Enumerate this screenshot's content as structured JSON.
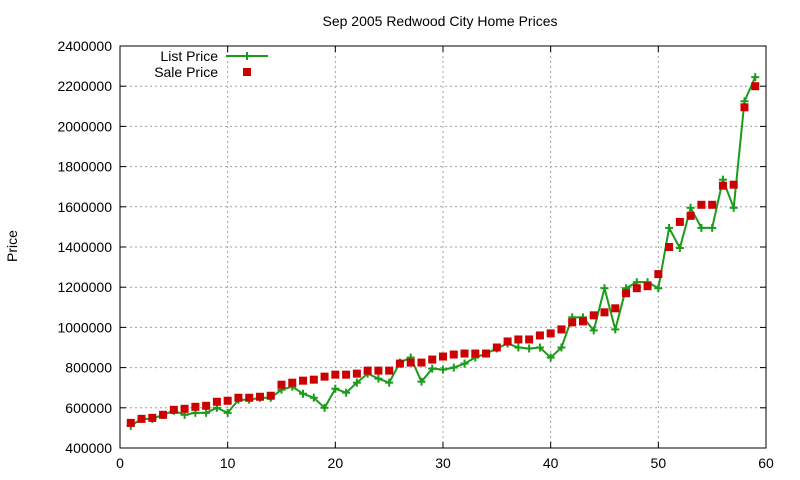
{
  "chart_data": {
    "type": "line",
    "title": "Sep 2005 Redwood City Home Prices",
    "xlabel": "",
    "ylabel": "Price",
    "xlim": [
      0,
      60
    ],
    "ylim": [
      400000,
      2400000
    ],
    "x_ticks": [
      0,
      10,
      20,
      30,
      40,
      50,
      60
    ],
    "y_ticks": [
      400000,
      600000,
      800000,
      1000000,
      1200000,
      1400000,
      1600000,
      1800000,
      2000000,
      2200000,
      2400000
    ],
    "grid": true,
    "legend_position": "top-left",
    "series": [
      {
        "name": "List Price",
        "style": "line-with-plus-markers",
        "color": "#1a9c1a",
        "x": [
          1,
          2,
          3,
          4,
          5,
          6,
          7,
          8,
          9,
          10,
          11,
          12,
          13,
          14,
          15,
          16,
          17,
          18,
          19,
          20,
          21,
          22,
          23,
          24,
          25,
          26,
          27,
          28,
          29,
          30,
          31,
          32,
          33,
          34,
          35,
          36,
          37,
          38,
          39,
          40,
          41,
          42,
          43,
          44,
          45,
          46,
          47,
          48,
          49,
          50,
          51,
          52,
          53,
          54,
          55,
          56,
          57,
          58,
          59
        ],
        "values": [
          510000,
          545000,
          545000,
          565000,
          585000,
          565000,
          575000,
          575000,
          600000,
          575000,
          640000,
          640000,
          650000,
          650000,
          690000,
          705000,
          670000,
          650000,
          600000,
          695000,
          675000,
          725000,
          770000,
          745000,
          725000,
          825000,
          850000,
          730000,
          795000,
          790000,
          800000,
          820000,
          850000,
          870000,
          895000,
          920000,
          900000,
          895000,
          900000,
          850000,
          900000,
          1050000,
          1050000,
          985000,
          1195000,
          990000,
          1195000,
          1225000,
          1225000,
          1195000,
          1495000,
          1395000,
          1595000,
          1495000,
          1495000,
          1735000,
          1595000,
          2125000,
          2245000
        ]
      },
      {
        "name": "Sale Price",
        "style": "square-markers",
        "color": "#cc0000",
        "x": [
          1,
          2,
          3,
          4,
          5,
          6,
          7,
          8,
          9,
          10,
          11,
          12,
          13,
          14,
          15,
          16,
          17,
          18,
          19,
          20,
          21,
          22,
          23,
          24,
          25,
          26,
          27,
          28,
          29,
          30,
          31,
          32,
          33,
          34,
          35,
          36,
          37,
          38,
          39,
          40,
          41,
          42,
          43,
          44,
          45,
          46,
          47,
          48,
          49,
          50,
          51,
          52,
          53,
          54,
          55,
          56,
          57,
          58,
          59
        ],
        "values": [
          525000,
          545000,
          550000,
          565000,
          590000,
          595000,
          605000,
          610000,
          630000,
          635000,
          650000,
          650000,
          655000,
          660000,
          715000,
          725000,
          735000,
          740000,
          755000,
          765000,
          765000,
          770000,
          785000,
          785000,
          785000,
          820000,
          825000,
          825000,
          840000,
          855000,
          865000,
          870000,
          870000,
          870000,
          900000,
          930000,
          940000,
          940000,
          960000,
          970000,
          990000,
          1025000,
          1030000,
          1060000,
          1075000,
          1095000,
          1170000,
          1195000,
          1205000,
          1265000,
          1400000,
          1525000,
          1555000,
          1610000,
          1610000,
          1705000,
          1710000,
          2095000,
          2200000
        ]
      }
    ]
  }
}
